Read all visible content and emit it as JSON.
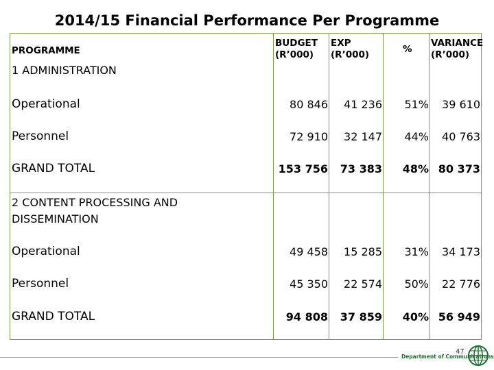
{
  "title": "2014/15 Financial Performance Per Programme",
  "headers": {
    "programme": "PROGRAMME",
    "budget_line1": "BUDGET",
    "budget_line2": "(R’000)",
    "exp_line1": "EXP",
    "exp_line2": "(R’000)",
    "percent": "%",
    "variance_line1": "VARIANCE",
    "variance_line2": "(R’000)"
  },
  "sections": [
    {
      "title_line1": "1  ADMINISTRATION",
      "title_line2": "",
      "rows": [
        {
          "label": "Operational",
          "budget": "80 846",
          "exp": "41 236",
          "percent": "51%",
          "variance": "39 610"
        },
        {
          "label": "Personnel",
          "budget": "72 910",
          "exp": "32 147",
          "percent": "44%",
          "variance": "40 763"
        },
        {
          "label": "GRAND TOTAL",
          "budget": "153 756",
          "exp": "73 383",
          "percent": "48%",
          "variance": "80 373"
        }
      ]
    },
    {
      "title_line1": "2  CONTENT PROCESSING AND",
      "title_line2": "DISSEMINATION",
      "rows": [
        {
          "label": "Operational",
          "budget": "49 458",
          "exp": "15 285",
          "percent": "31%",
          "variance": "34 173"
        },
        {
          "label": "Personnel",
          "budget": "45 350",
          "exp": "22 574",
          "percent": "50%",
          "variance": "22 776"
        },
        {
          "label": "GRAND TOTAL",
          "budget": "94 808",
          "exp": "37 859",
          "percent": "40%",
          "variance": "56 949"
        }
      ]
    }
  ],
  "footer": {
    "page_number": "47",
    "department": "Department of Communications"
  },
  "colors": {
    "border": "#7a9a4c",
    "brand_green": "#1b6d2c"
  }
}
